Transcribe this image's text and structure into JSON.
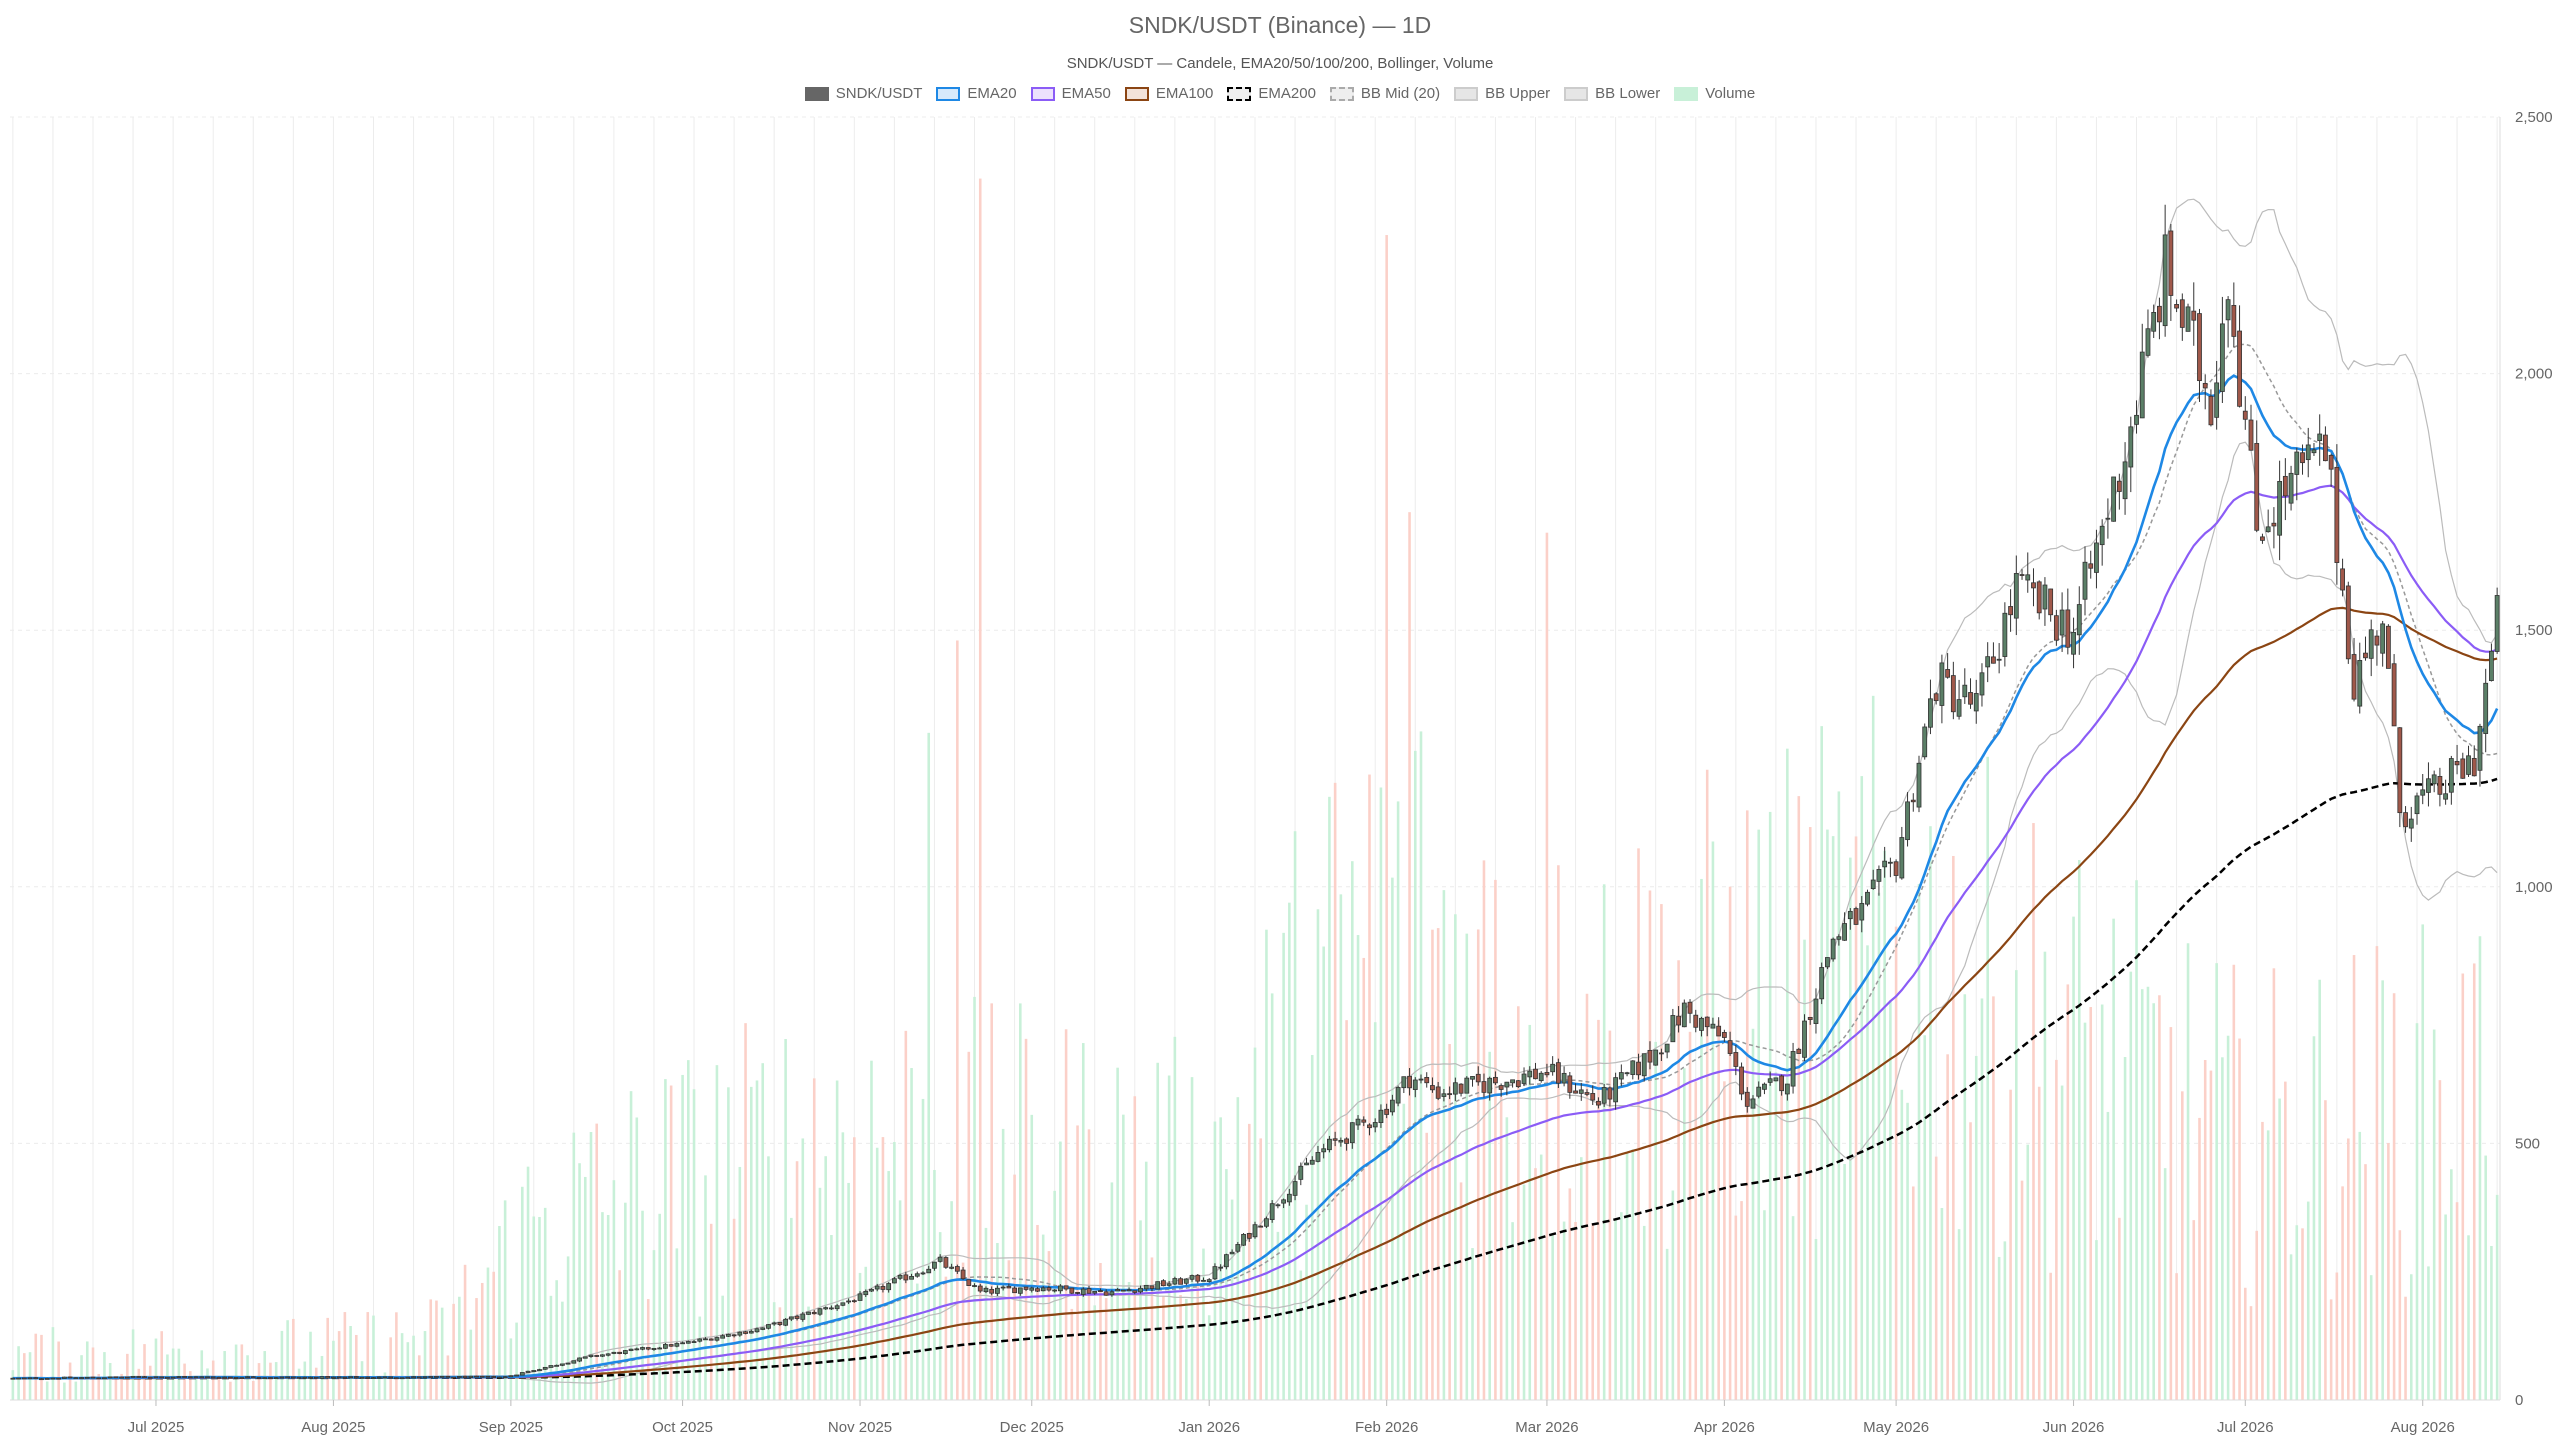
{
  "title": "SNDK/USDT (Binance) — 1D",
  "subtitle": "SNDK/USDT — Candele, EMA20/50/100/200, Bollinger, Volume",
  "legend": [
    {
      "label": "SNDK/USDT",
      "fill": "#666666",
      "stroke": "#666666",
      "dash": false
    },
    {
      "label": "EMA20",
      "fill": "#d6e9fb",
      "stroke": "#1e88e5",
      "dash": false
    },
    {
      "label": "EMA50",
      "fill": "#ece1fd",
      "stroke": "#8b5cf6",
      "dash": false
    },
    {
      "label": "EMA100",
      "fill": "#f3e3da",
      "stroke": "#8b4513",
      "dash": false
    },
    {
      "label": "EMA200",
      "fill": "#eeeeee",
      "stroke": "#000000",
      "dash": true
    },
    {
      "label": "BB Mid (20)",
      "fill": "#eeeeee",
      "stroke": "#aaaaaa",
      "dash": true
    },
    {
      "label": "BB Upper",
      "fill": "#e6e6e6",
      "stroke": "#cccccc",
      "dash": false
    },
    {
      "label": "BB Lower",
      "fill": "#e6e6e6",
      "stroke": "#cccccc",
      "dash": false
    },
    {
      "label": "Volume",
      "fill": "#c8f0d8",
      "stroke": "#c8f0d8",
      "dash": false
    }
  ],
  "colors": {
    "up": "#5b7f67",
    "down": "#a0584a",
    "vol_up": "#c8f0d8",
    "vol_down": "#fbd0c8",
    "grid": "#ececec",
    "ema20": "#1e88e5",
    "ema50": "#8b5cf6",
    "ema100": "#8b4513",
    "ema200": "#000000",
    "bb": "#bbbbbb"
  },
  "chart_data": {
    "type": "candlestick",
    "x_start": "2025-06-06",
    "x_end": "2026-08-14",
    "y_ticks": [
      "0",
      "500",
      "1,000",
      "1,500",
      "2,000",
      "2,500"
    ],
    "ylim": [
      0,
      2500
    ],
    "x_ticks": [
      {
        "date": "2025-07-01",
        "label": "Jul 2025"
      },
      {
        "date": "2025-08-01",
        "label": "Aug 2025"
      },
      {
        "date": "2025-09-01",
        "label": "Sep 2025"
      },
      {
        "date": "2025-10-01",
        "label": "Oct 2025"
      },
      {
        "date": "2025-11-01",
        "label": "Nov 2025"
      },
      {
        "date": "2025-12-01",
        "label": "Dec 2025"
      },
      {
        "date": "2026-01-01",
        "label": "Jan 2026"
      },
      {
        "date": "2026-02-01",
        "label": "Feb 2026"
      },
      {
        "date": "2026-03-01",
        "label": "Mar 2026"
      },
      {
        "date": "2026-04-01",
        "label": "Apr 2026"
      },
      {
        "date": "2026-05-01",
        "label": "May 2026"
      },
      {
        "date": "2026-06-01",
        "label": "Jun 2026"
      },
      {
        "date": "2026-07-01",
        "label": "Jul 2026"
      },
      {
        "date": "2026-08-01",
        "label": "Aug 2026"
      }
    ],
    "close_keypoints": [
      [
        "2025-06-06",
        42
      ],
      [
        "2025-06-30",
        45
      ],
      [
        "2025-07-31",
        44
      ],
      [
        "2025-08-31",
        45
      ],
      [
        "2025-09-15",
        85
      ],
      [
        "2025-10-01",
        110
      ],
      [
        "2025-10-15",
        140
      ],
      [
        "2025-11-01",
        200
      ],
      [
        "2025-11-15",
        270
      ],
      [
        "2025-11-22",
        210
      ],
      [
        "2025-12-01",
        220
      ],
      [
        "2025-12-15",
        210
      ],
      [
        "2026-01-01",
        240
      ],
      [
        "2026-01-10",
        350
      ],
      [
        "2026-01-20",
        480
      ],
      [
        "2026-01-31",
        560
      ],
      [
        "2026-02-05",
        630
      ],
      [
        "2026-02-10",
        600
      ],
      [
        "2026-02-20",
        620
      ],
      [
        "2026-03-01",
        640
      ],
      [
        "2026-03-10",
        580
      ],
      [
        "2026-03-20",
        680
      ],
      [
        "2026-03-25",
        760
      ],
      [
        "2026-04-01",
        700
      ],
      [
        "2026-04-05",
        580
      ],
      [
        "2026-04-12",
        630
      ],
      [
        "2026-04-20",
        900
      ],
      [
        "2026-04-25",
        950
      ],
      [
        "2026-05-01",
        1050
      ],
      [
        "2026-05-08",
        1400
      ],
      [
        "2026-05-15",
        1350
      ],
      [
        "2026-05-22",
        1580
      ],
      [
        "2026-06-01",
        1500
      ],
      [
        "2026-06-10",
        1850
      ],
      [
        "2026-06-17",
        2200
      ],
      [
        "2026-06-25",
        1950
      ],
      [
        "2026-06-28",
        2200
      ],
      [
        "2026-07-03",
        1700
      ],
      [
        "2026-07-10",
        1800
      ],
      [
        "2026-07-15",
        1850
      ],
      [
        "2026-07-20",
        1400
      ],
      [
        "2026-07-25",
        1530
      ],
      [
        "2026-07-28",
        1150
      ],
      [
        "2026-08-03",
        1180
      ],
      [
        "2026-08-10",
        1250
      ],
      [
        "2026-08-14",
        1520
      ]
    ],
    "volume_keypoints": [
      [
        "2025-06-06",
        100
      ],
      [
        "2025-07-31",
        120
      ],
      [
        "2025-08-20",
        150
      ],
      [
        "2025-09-05",
        400
      ],
      [
        "2025-10-01",
        500
      ],
      [
        "2025-11-01",
        600
      ],
      [
        "2025-12-01",
        550
      ],
      [
        "2026-01-01",
        500
      ],
      [
        "2026-01-15",
        800
      ],
      [
        "2026-02-01",
        1100
      ],
      [
        "2026-03-01",
        800
      ],
      [
        "2026-04-01",
        900
      ],
      [
        "2026-05-01",
        1000
      ],
      [
        "2026-06-01",
        800
      ],
      [
        "2026-07-01",
        600
      ],
      [
        "2026-08-14",
        700
      ]
    ],
    "volume_spikes": [
      [
        "2025-11-22",
        2380
      ],
      [
        "2026-02-01",
        2270
      ],
      [
        "2026-02-05",
        1730
      ],
      [
        "2026-03-01",
        1690
      ],
      [
        "2025-11-18",
        1480
      ],
      [
        "2025-11-13",
        1300
      ]
    ],
    "volume_max": 2500
  }
}
